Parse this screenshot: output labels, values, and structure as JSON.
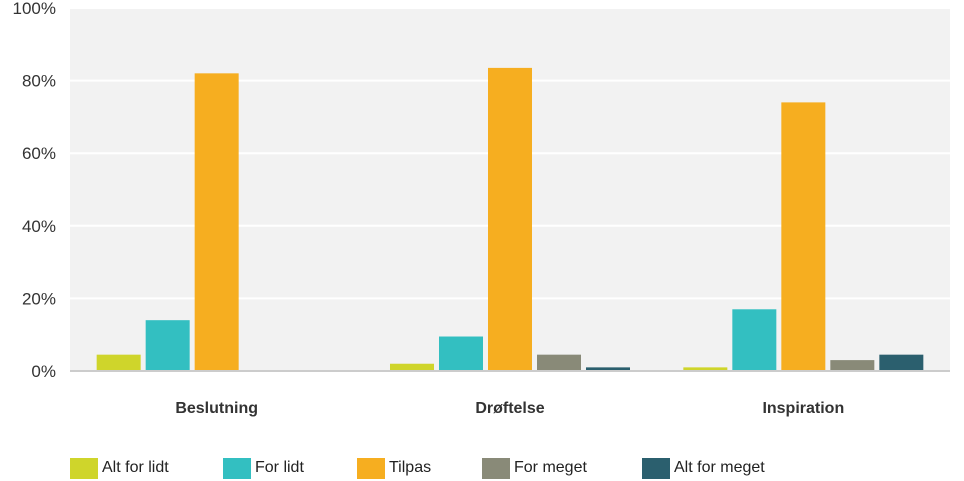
{
  "chart_data": {
    "type": "bar",
    "title": "",
    "xlabel": "",
    "ylabel": "",
    "ylim": [
      0,
      100
    ],
    "yticks": [
      0,
      20,
      40,
      60,
      80,
      100
    ],
    "ytick_labels": [
      "0%",
      "20%",
      "40%",
      "60%",
      "80%",
      "100%"
    ],
    "categories": [
      "Beslutning",
      "Drøftelse",
      "Inspiration"
    ],
    "series": [
      {
        "name": "Alt for lidt",
        "color": "#cfd52b",
        "values": [
          4.5,
          2,
          1
        ]
      },
      {
        "name": "For lidt",
        "color": "#33bfc1",
        "values": [
          14,
          9.5,
          17
        ]
      },
      {
        "name": "Tilpas",
        "color": "#f6ae20",
        "values": [
          82,
          83.5,
          74
        ]
      },
      {
        "name": "For meget",
        "color": "#898a78",
        "values": [
          0,
          4.5,
          3
        ]
      },
      {
        "name": "Alt for meget",
        "color": "#2b5f6e",
        "values": [
          0,
          1,
          4.5
        ]
      }
    ],
    "grid": true,
    "legend_position": "bottom"
  },
  "colors": {
    "plot_background": "#f2f2f2",
    "gridline": "#ffffff",
    "axis": "#cccccc"
  }
}
